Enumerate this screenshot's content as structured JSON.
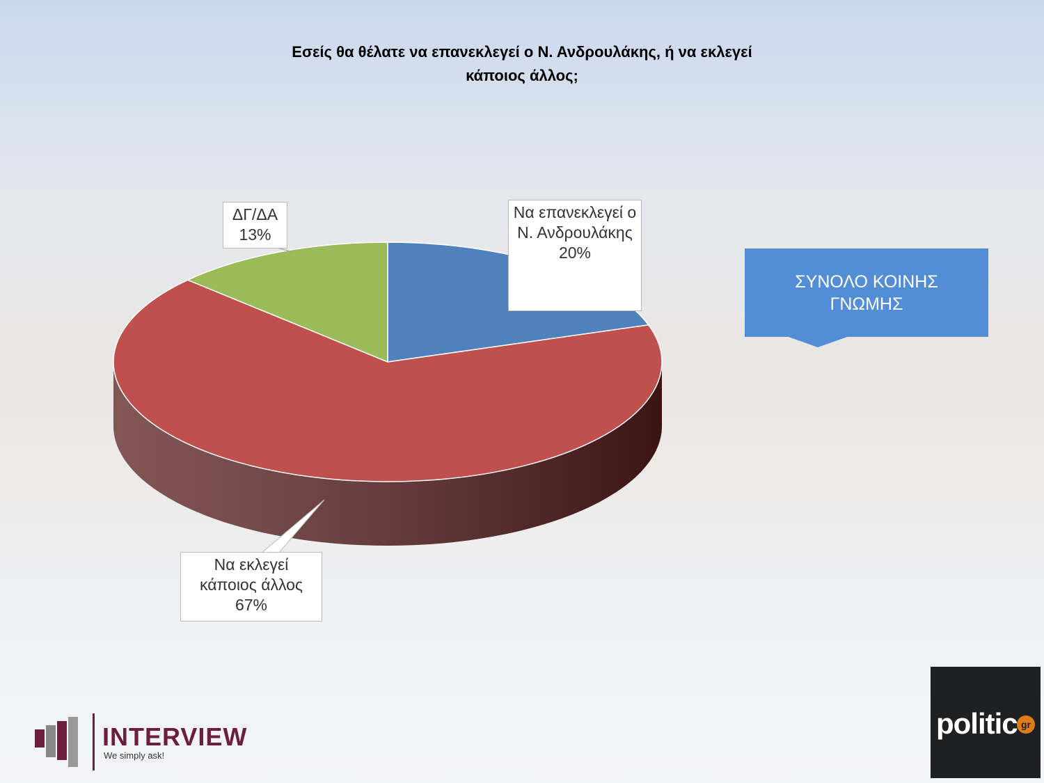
{
  "chart_data": {
    "type": "pie3d",
    "title": "Εσείς θα θέλατε να επανεκλεγεί ο Ν. Ανδρουλάκης, ή να εκλεγεί κάποιος άλλος;",
    "categories": [
      "Να επανεκλεγεί ο Ν. Ανδρουλάκης",
      "Να εκλεγεί κάποιος άλλος",
      "ΔΓ/ΔΑ"
    ],
    "values": [
      20,
      67,
      13
    ],
    "value_labels": [
      "20%",
      "67%",
      "13%"
    ],
    "colors": [
      "#4f81bd",
      "#c0504d",
      "#9bbb59"
    ],
    "side_colors": [
      "#2f4d72",
      "#5a1e1e",
      "#5d7035"
    ],
    "callout": "ΣΥΝΟΛΟ ΚΟΙΝΗΣ ΓΝΩΜΗΣ"
  },
  "logos": {
    "interview": "INTERVIEW",
    "interview_tagline": "We simply ask!",
    "politic": "politic",
    "politic_suffix": "gr"
  }
}
